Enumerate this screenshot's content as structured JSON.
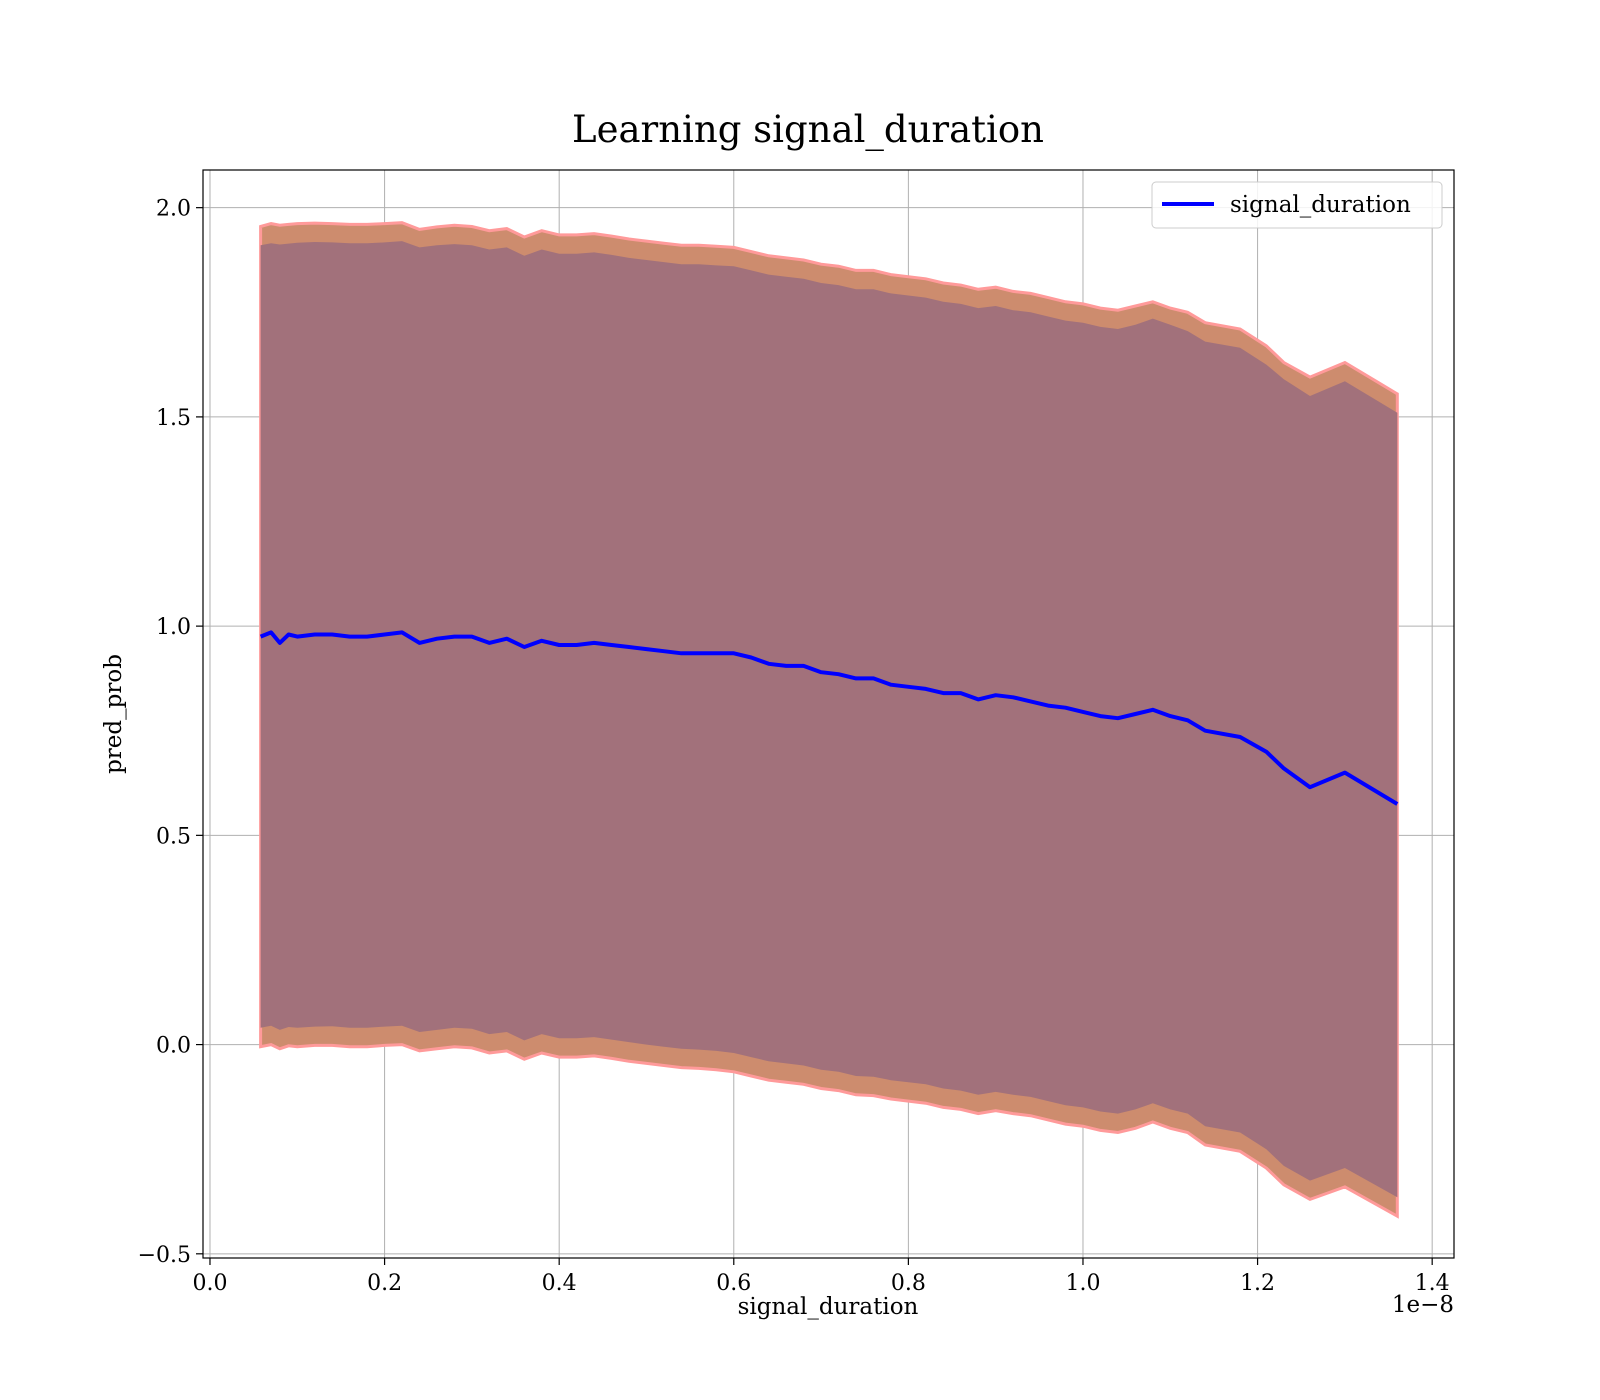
{
  "chart_data": {
    "type": "line",
    "title": "Learning signal_duration",
    "xlabel": "signal_duration",
    "ylabel": "pred_prob",
    "x_offset_label": "1e−8",
    "xlim": [
      -0.008,
      1.425
    ],
    "ylim": [
      -0.51,
      2.09
    ],
    "xticks": [
      0.0,
      0.2,
      0.4,
      0.6,
      0.8,
      1.0,
      1.2,
      1.4
    ],
    "xtick_labels": [
      "0.0",
      "0.2",
      "0.4",
      "0.6",
      "0.8",
      "1.0",
      "1.2",
      "1.4"
    ],
    "yticks": [
      -0.5,
      0.0,
      0.5,
      1.0,
      1.5,
      2.0
    ],
    "ytick_labels": [
      "−0.5",
      "0.0",
      "0.5",
      "1.0",
      "1.5",
      "2.0"
    ],
    "grid": true,
    "legend_position": "top-right",
    "colors": {
      "line": "#0000ff",
      "outer_band": "#cd8c6e",
      "outer_band_edge": "#ff9a9a",
      "inner_band": "#a2717b"
    },
    "series": [
      {
        "name": "signal_duration",
        "x": [
          0.058,
          0.07,
          0.08,
          0.09,
          0.1,
          0.12,
          0.14,
          0.16,
          0.18,
          0.2,
          0.22,
          0.24,
          0.26,
          0.28,
          0.3,
          0.32,
          0.34,
          0.36,
          0.38,
          0.4,
          0.42,
          0.44,
          0.46,
          0.48,
          0.5,
          0.52,
          0.54,
          0.56,
          0.58,
          0.6,
          0.62,
          0.64,
          0.66,
          0.68,
          0.7,
          0.72,
          0.74,
          0.76,
          0.78,
          0.8,
          0.82,
          0.84,
          0.86,
          0.88,
          0.9,
          0.92,
          0.94,
          0.96,
          0.98,
          1.0,
          1.02,
          1.04,
          1.06,
          1.08,
          1.1,
          1.12,
          1.14,
          1.18,
          1.21,
          1.23,
          1.26,
          1.3,
          1.36
        ],
        "y": [
          0.975,
          0.985,
          0.96,
          0.98,
          0.975,
          0.98,
          0.98,
          0.975,
          0.975,
          0.98,
          0.985,
          0.96,
          0.97,
          0.975,
          0.975,
          0.96,
          0.97,
          0.95,
          0.965,
          0.955,
          0.955,
          0.96,
          0.955,
          0.95,
          0.945,
          0.94,
          0.935,
          0.935,
          0.935,
          0.935,
          0.925,
          0.91,
          0.905,
          0.905,
          0.89,
          0.885,
          0.875,
          0.875,
          0.86,
          0.855,
          0.85,
          0.84,
          0.84,
          0.825,
          0.835,
          0.83,
          0.82,
          0.81,
          0.805,
          0.795,
          0.785,
          0.78,
          0.79,
          0.8,
          0.785,
          0.775,
          0.75,
          0.735,
          0.7,
          0.66,
          0.615,
          0.65,
          0.575
        ]
      }
    ],
    "bands": {
      "outer_upper": [
        1.955,
        1.962,
        1.958,
        1.96,
        1.962,
        1.963,
        1.962,
        1.96,
        1.96,
        1.962,
        1.964,
        1.948,
        1.954,
        1.958,
        1.955,
        1.945,
        1.95,
        1.93,
        1.945,
        1.935,
        1.935,
        1.938,
        1.932,
        1.925,
        1.92,
        1.915,
        1.91,
        1.91,
        1.908,
        1.905,
        1.895,
        1.885,
        1.88,
        1.875,
        1.865,
        1.86,
        1.85,
        1.85,
        1.84,
        1.835,
        1.83,
        1.82,
        1.815,
        1.805,
        1.81,
        1.8,
        1.795,
        1.785,
        1.775,
        1.77,
        1.76,
        1.755,
        1.765,
        1.775,
        1.76,
        1.75,
        1.725,
        1.71,
        1.67,
        1.63,
        1.595,
        1.63,
        1.555
      ],
      "inner_upper": [
        1.91,
        1.915,
        1.912,
        1.914,
        1.916,
        1.918,
        1.917,
        1.915,
        1.915,
        1.917,
        1.92,
        1.905,
        1.91,
        1.913,
        1.91,
        1.9,
        1.905,
        1.885,
        1.9,
        1.89,
        1.89,
        1.893,
        1.887,
        1.88,
        1.875,
        1.87,
        1.865,
        1.865,
        1.862,
        1.86,
        1.85,
        1.84,
        1.835,
        1.83,
        1.82,
        1.815,
        1.805,
        1.805,
        1.795,
        1.79,
        1.785,
        1.775,
        1.77,
        1.76,
        1.765,
        1.755,
        1.75,
        1.74,
        1.73,
        1.725,
        1.715,
        1.71,
        1.72,
        1.735,
        1.72,
        1.705,
        1.68,
        1.665,
        1.625,
        1.59,
        1.55,
        1.585,
        1.51
      ],
      "inner_lower": [
        0.04,
        0.045,
        0.035,
        0.042,
        0.04,
        0.043,
        0.044,
        0.04,
        0.04,
        0.043,
        0.045,
        0.03,
        0.035,
        0.04,
        0.038,
        0.025,
        0.03,
        0.01,
        0.025,
        0.015,
        0.015,
        0.018,
        0.012,
        0.006,
        0.0,
        -0.005,
        -0.01,
        -0.012,
        -0.015,
        -0.02,
        -0.03,
        -0.04,
        -0.045,
        -0.05,
        -0.06,
        -0.065,
        -0.075,
        -0.077,
        -0.085,
        -0.09,
        -0.095,
        -0.105,
        -0.11,
        -0.12,
        -0.113,
        -0.12,
        -0.125,
        -0.135,
        -0.145,
        -0.15,
        -0.16,
        -0.165,
        -0.155,
        -0.14,
        -0.155,
        -0.165,
        -0.195,
        -0.21,
        -0.25,
        -0.29,
        -0.325,
        -0.295,
        -0.365
      ],
      "outer_lower": [
        -0.005,
        0.0,
        -0.01,
        -0.003,
        -0.005,
        -0.002,
        -0.002,
        -0.005,
        -0.005,
        -0.002,
        0.0,
        -0.015,
        -0.01,
        -0.005,
        -0.008,
        -0.02,
        -0.015,
        -0.035,
        -0.02,
        -0.03,
        -0.03,
        -0.027,
        -0.033,
        -0.04,
        -0.045,
        -0.05,
        -0.055,
        -0.057,
        -0.06,
        -0.065,
        -0.075,
        -0.085,
        -0.09,
        -0.095,
        -0.105,
        -0.11,
        -0.12,
        -0.122,
        -0.13,
        -0.135,
        -0.14,
        -0.15,
        -0.155,
        -0.165,
        -0.158,
        -0.165,
        -0.17,
        -0.18,
        -0.19,
        -0.195,
        -0.205,
        -0.21,
        -0.2,
        -0.185,
        -0.2,
        -0.21,
        -0.24,
        -0.255,
        -0.295,
        -0.335,
        -0.37,
        -0.34,
        -0.41
      ]
    }
  }
}
